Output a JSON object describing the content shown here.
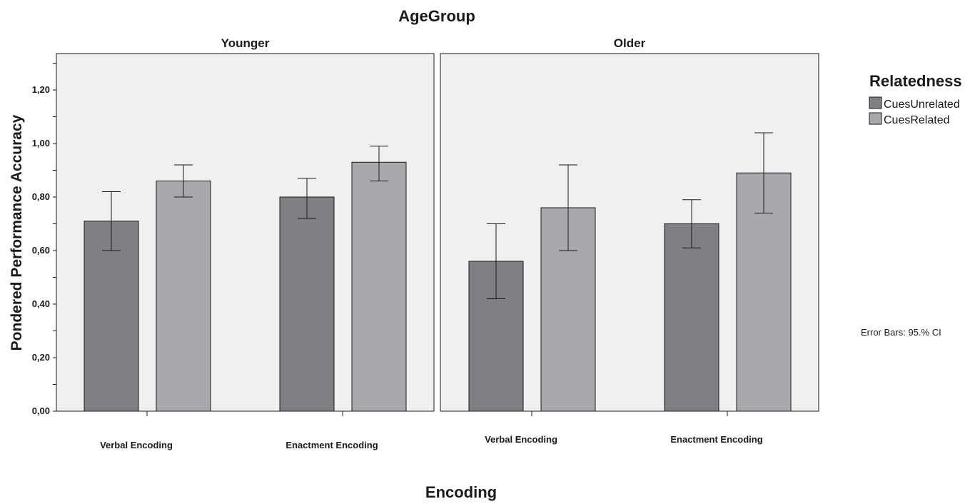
{
  "chart_data": {
    "type": "bar",
    "title": "AgeGroup",
    "xlabel": "Encoding",
    "ylabel": "Pondered Performance Accuracy",
    "ylim": [
      0,
      1.33
    ],
    "yticks": [
      "0,00",
      "0,20",
      "0,40",
      "0,60",
      "0,80",
      "1,00",
      "1,20"
    ],
    "ytick_values": [
      0,
      0.2,
      0.4,
      0.6,
      0.8,
      1.0,
      1.2
    ],
    "grid": false,
    "legend": {
      "title": "Relatedness",
      "placement": "right",
      "items": [
        {
          "label": "CuesUnrelated",
          "color": "#7f8084"
        },
        {
          "label": "CuesRelated",
          "color": "#a8a9ad"
        }
      ]
    },
    "note": "Error Bars: 95.% CI",
    "categories": [
      "Verbal Encoding",
      "Enactment Encoding"
    ],
    "panels": [
      {
        "name": "Younger",
        "series": [
          {
            "name": "CuesUnrelated",
            "values": [
              0.71,
              0.8
            ],
            "ci_low": [
              0.6,
              0.72
            ],
            "ci_high": [
              0.82,
              0.87
            ]
          },
          {
            "name": "CuesRelated",
            "values": [
              0.86,
              0.93
            ],
            "ci_low": [
              0.8,
              0.86
            ],
            "ci_high": [
              0.92,
              0.99
            ]
          }
        ]
      },
      {
        "name": "Older",
        "series": [
          {
            "name": "CuesUnrelated",
            "values": [
              0.56,
              0.7
            ],
            "ci_low": [
              0.42,
              0.61
            ],
            "ci_high": [
              0.7,
              0.79
            ]
          },
          {
            "name": "CuesRelated",
            "values": [
              0.76,
              0.89
            ],
            "ci_low": [
              0.6,
              0.74
            ],
            "ci_high": [
              0.92,
              1.04
            ]
          }
        ]
      }
    ],
    "colors": {
      "panel_bg": "#f0f0f1",
      "unrelated": "#7f8084",
      "related": "#a8a9ad"
    }
  }
}
